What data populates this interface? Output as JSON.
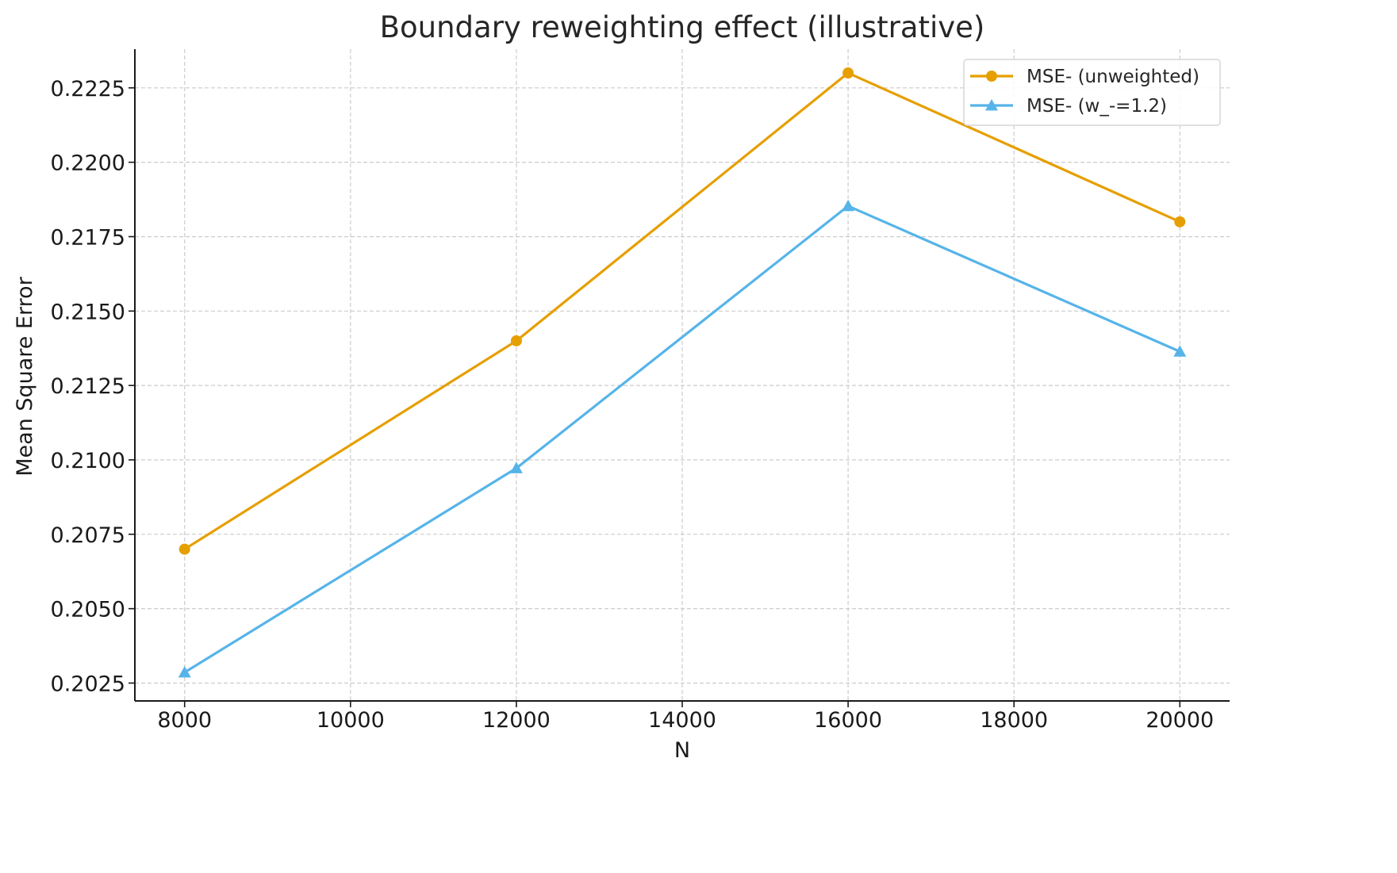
{
  "chart_data": {
    "type": "line",
    "title": "Boundary reweighting effect (illustrative)",
    "xlabel": "N",
    "ylabel": "Mean Square Error",
    "x": [
      8000,
      12000,
      16000,
      20000
    ],
    "xlim": [
      7400,
      20600
    ],
    "ylim": [
      0.2019,
      0.2238
    ],
    "xticks": [
      8000,
      10000,
      12000,
      14000,
      16000,
      18000,
      20000
    ],
    "xtick_labels": [
      "8000",
      "10000",
      "12000",
      "14000",
      "16000",
      "18000",
      "20000"
    ],
    "yticks": [
      0.2025,
      0.205,
      0.2075,
      0.21,
      0.2125,
      0.215,
      0.2175,
      0.22,
      0.2225
    ],
    "ytick_labels": [
      "0.2025",
      "0.2050",
      "0.2075",
      "0.2100",
      "0.2125",
      "0.2150",
      "0.2175",
      "0.2200",
      "0.2225"
    ],
    "grid": true,
    "legend_position": "top-right",
    "series": [
      {
        "name": "MSE- (unweighted)",
        "marker": "circle",
        "color": "#E69F00",
        "values": [
          0.207,
          0.214,
          0.223,
          0.218
        ]
      },
      {
        "name": "MSE- (w_-=1.2)",
        "marker": "triangle",
        "color": "#56B4E9",
        "values": [
          0.20286,
          0.20972,
          0.21853,
          0.21364
        ]
      }
    ]
  }
}
